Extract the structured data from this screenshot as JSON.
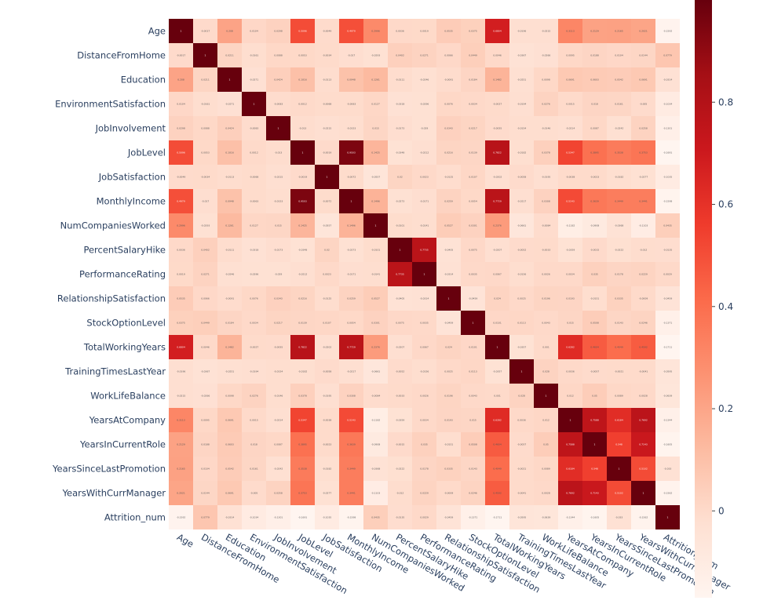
{
  "chart_data": {
    "type": "heatmap",
    "colorscale": "Reds",
    "zmin": -0.17,
    "zmax": 1.0,
    "colorbar_ticks": [
      0.8,
      0.6,
      0.4,
      0.2,
      0
    ],
    "colorbar_tick_labels": [
      "0.8",
      "0.6",
      "0.4",
      "0.2",
      "0"
    ],
    "labels": [
      "Age",
      "DistanceFromHome",
      "Education",
      "EnvironmentSatisfaction",
      "JobInvolvement",
      "JobLevel",
      "JobSatisfaction",
      "MonthlyIncome",
      "NumCompaniesWorked",
      "PercentSalaryHike",
      "PerformanceRating",
      "RelationshipSatisfaction",
      "StockOptionLevel",
      "TotalWorkingYears",
      "TrainingTimesLastYear",
      "WorkLifeBalance",
      "YearsAtCompany",
      "YearsInCurrentRole",
      "YearsSinceLastPromotion",
      "YearsWithCurrManager",
      "Attrition_num"
    ],
    "matrix": [
      [
        1,
        -0.0017,
        0.208,
        0.0104,
        0.0298,
        0.5096,
        -0.0049,
        0.4979,
        0.2996,
        0.0036,
        0.0019,
        0.0535,
        0.0375,
        0.6804,
        -0.0196,
        -0.0215,
        0.3113,
        0.2129,
        0.2165,
        0.2021,
        -0.1592
      ],
      [
        -0.0017,
        1,
        0.0211,
        -0.0161,
        0.0088,
        0.0053,
        -0.0034,
        -0.017,
        -0.0293,
        0.0402,
        0.0271,
        0.0066,
        0.0449,
        0.0046,
        -0.0367,
        -0.0266,
        0.0095,
        0.0188,
        0.0104,
        0.0144,
        0.0779
      ],
      [
        0.208,
        0.0211,
        1,
        -0.0271,
        0.0424,
        0.1016,
        -0.0113,
        0.0948,
        0.1261,
        -0.0111,
        -0.0246,
        -0.0091,
        0.0184,
        0.1482,
        -0.0251,
        0.0098,
        0.0691,
        0.0603,
        0.0542,
        0.0691,
        -0.0314
      ],
      [
        0.0104,
        -0.0161,
        -0.0271,
        1,
        -0.0083,
        0.0012,
        -0.0068,
        -0.0063,
        0.0127,
        -0.0318,
        -0.0296,
        0.0076,
        0.0034,
        -0.0027,
        -0.0194,
        0.0276,
        0.0015,
        0.018,
        0.0161,
        -0.005,
        -0.1034
      ],
      [
        0.0298,
        0.0088,
        0.0424,
        -0.0083,
        1,
        -0.013,
        -0.0215,
        -0.0153,
        0.015,
        -0.0173,
        -0.029,
        0.0343,
        0.0217,
        -0.0055,
        -0.0154,
        -0.0146,
        -0.0214,
        0.0087,
        -0.0242,
        0.0258,
        -0.1301
      ],
      [
        0.5096,
        0.0053,
        0.1016,
        0.0012,
        -0.013,
        1,
        -0.0019,
        0.9503,
        0.1425,
        -0.0348,
        -0.0212,
        0.0216,
        0.0139,
        0.7822,
        -0.0182,
        0.0378,
        0.5347,
        0.3895,
        0.3538,
        0.3753,
        -0.1691
      ],
      [
        -0.0049,
        -0.0034,
        -0.0113,
        -0.0068,
        -0.0215,
        -0.0019,
        1,
        -0.0072,
        -0.0557,
        0.02,
        0.0023,
        -0.0125,
        0.0107,
        -0.0202,
        -0.0058,
        -0.0195,
        -0.0038,
        -0.0023,
        -0.0182,
        -0.0277,
        -0.1035
      ],
      [
        0.4979,
        -0.017,
        0.0948,
        -0.0063,
        -0.0153,
        0.9503,
        -0.0072,
        1,
        0.1496,
        -0.0273,
        -0.0171,
        0.0259,
        0.0054,
        0.7729,
        -0.0217,
        0.0308,
        0.5143,
        0.3639,
        0.3449,
        0.3441,
        -0.1598
      ],
      [
        0.2996,
        -0.0293,
        0.1261,
        0.0127,
        0.015,
        0.1425,
        -0.0557,
        0.1496,
        1,
        -0.0101,
        -0.0141,
        0.0527,
        0.0301,
        0.2376,
        -0.0661,
        -0.0084,
        -0.1182,
        -0.0908,
        -0.0368,
        -0.1103,
        0.0435
      ],
      [
        0.0036,
        0.0402,
        -0.0111,
        -0.0318,
        -0.0173,
        -0.0348,
        0.02,
        -0.0273,
        -0.0101,
        1,
        0.7735,
        -0.0405,
        0.0075,
        -0.0207,
        -0.0052,
        -0.0033,
        -0.0359,
        -0.0015,
        -0.0222,
        -0.012,
        -0.0135
      ],
      [
        0.0019,
        0.0271,
        -0.0246,
        -0.0296,
        -0.029,
        -0.0212,
        0.0023,
        -0.0171,
        -0.0141,
        0.7735,
        1,
        -0.0314,
        0.0035,
        0.0067,
        -0.0156,
        0.0026,
        0.0034,
        0.035,
        0.0178,
        0.0229,
        0.0029
      ],
      [
        0.0535,
        0.0066,
        -0.0091,
        0.0076,
        0.0343,
        0.0216,
        -0.0125,
        0.0259,
        0.0527,
        -0.0405,
        -0.0314,
        1,
        -0.0459,
        0.024,
        0.0025,
        0.0196,
        0.0193,
        -0.0151,
        0.0335,
        -0.0009,
        -0.0459
      ],
      [
        0.0375,
        0.0449,
        0.0184,
        0.0034,
        0.0217,
        0.0139,
        0.0107,
        0.0054,
        0.0301,
        0.0075,
        0.0035,
        -0.0459,
        1,
        0.0101,
        0.0113,
        0.0043,
        0.015,
        0.0508,
        0.0143,
        0.0246,
        -0.1371
      ],
      [
        0.6804,
        0.0046,
        0.1482,
        -0.0027,
        -0.0055,
        0.7822,
        -0.0202,
        0.7729,
        0.2376,
        -0.0207,
        0.0067,
        0.024,
        0.0101,
        1,
        -0.0357,
        0.001,
        0.6282,
        0.4604,
        0.4049,
        0.4592,
        -0.1711
      ],
      [
        -0.0196,
        -0.0367,
        -0.0251,
        -0.0194,
        -0.0154,
        -0.0182,
        -0.0058,
        -0.0217,
        -0.0661,
        -0.0052,
        -0.0156,
        0.0025,
        0.0113,
        -0.0357,
        1,
        0.028,
        0.0036,
        -0.0057,
        -0.0021,
        -0.0041,
        -0.0595
      ],
      [
        -0.0215,
        -0.0266,
        0.0098,
        0.0276,
        -0.0146,
        0.0378,
        -0.0195,
        0.0308,
        -0.0084,
        -0.0033,
        0.0026,
        0.0196,
        0.0043,
        0.001,
        0.028,
        1,
        0.012,
        0.05,
        0.0089,
        0.0028,
        -0.0639
      ],
      [
        0.3113,
        0.0095,
        0.0691,
        0.0015,
        -0.0214,
        0.5347,
        -0.0038,
        0.5143,
        -0.1182,
        -0.0359,
        0.0034,
        0.0193,
        0.015,
        0.6282,
        0.0036,
        0.012,
        1,
        0.7588,
        0.6184,
        0.7692,
        -0.1344
      ],
      [
        0.2129,
        0.0188,
        0.0603,
        0.018,
        0.0087,
        0.3895,
        -0.0023,
        0.3639,
        -0.0908,
        -0.0015,
        0.035,
        -0.0151,
        0.0508,
        0.4604,
        -0.0057,
        0.05,
        0.7588,
        1,
        0.548,
        0.7143,
        -0.1605
      ],
      [
        0.2165,
        0.0104,
        0.0542,
        0.0161,
        -0.0242,
        0.3538,
        -0.0182,
        0.3449,
        -0.0368,
        -0.0222,
        0.0178,
        0.0335,
        0.0143,
        0.4049,
        -0.0021,
        0.0089,
        0.6184,
        0.548,
        1,
        0.5102,
        -0.033
      ],
      [
        0.2021,
        0.0144,
        0.0691,
        -0.005,
        0.0258,
        0.3753,
        -0.0277,
        0.3441,
        -0.1103,
        -0.012,
        0.0229,
        -0.0009,
        0.0246,
        0.4592,
        -0.0041,
        0.0028,
        0.7692,
        0.7143,
        0.5102,
        1,
        -0.1562
      ],
      [
        -0.1592,
        0.0779,
        -0.0314,
        -0.1034,
        -0.1301,
        -0.1691,
        -0.1035,
        -0.1598,
        0.0435,
        -0.0135,
        0.0029,
        -0.0459,
        -0.1371,
        -0.1711,
        -0.0595,
        -0.0639,
        -0.1344,
        -0.1605,
        -0.033,
        -0.1562,
        1
      ]
    ]
  }
}
